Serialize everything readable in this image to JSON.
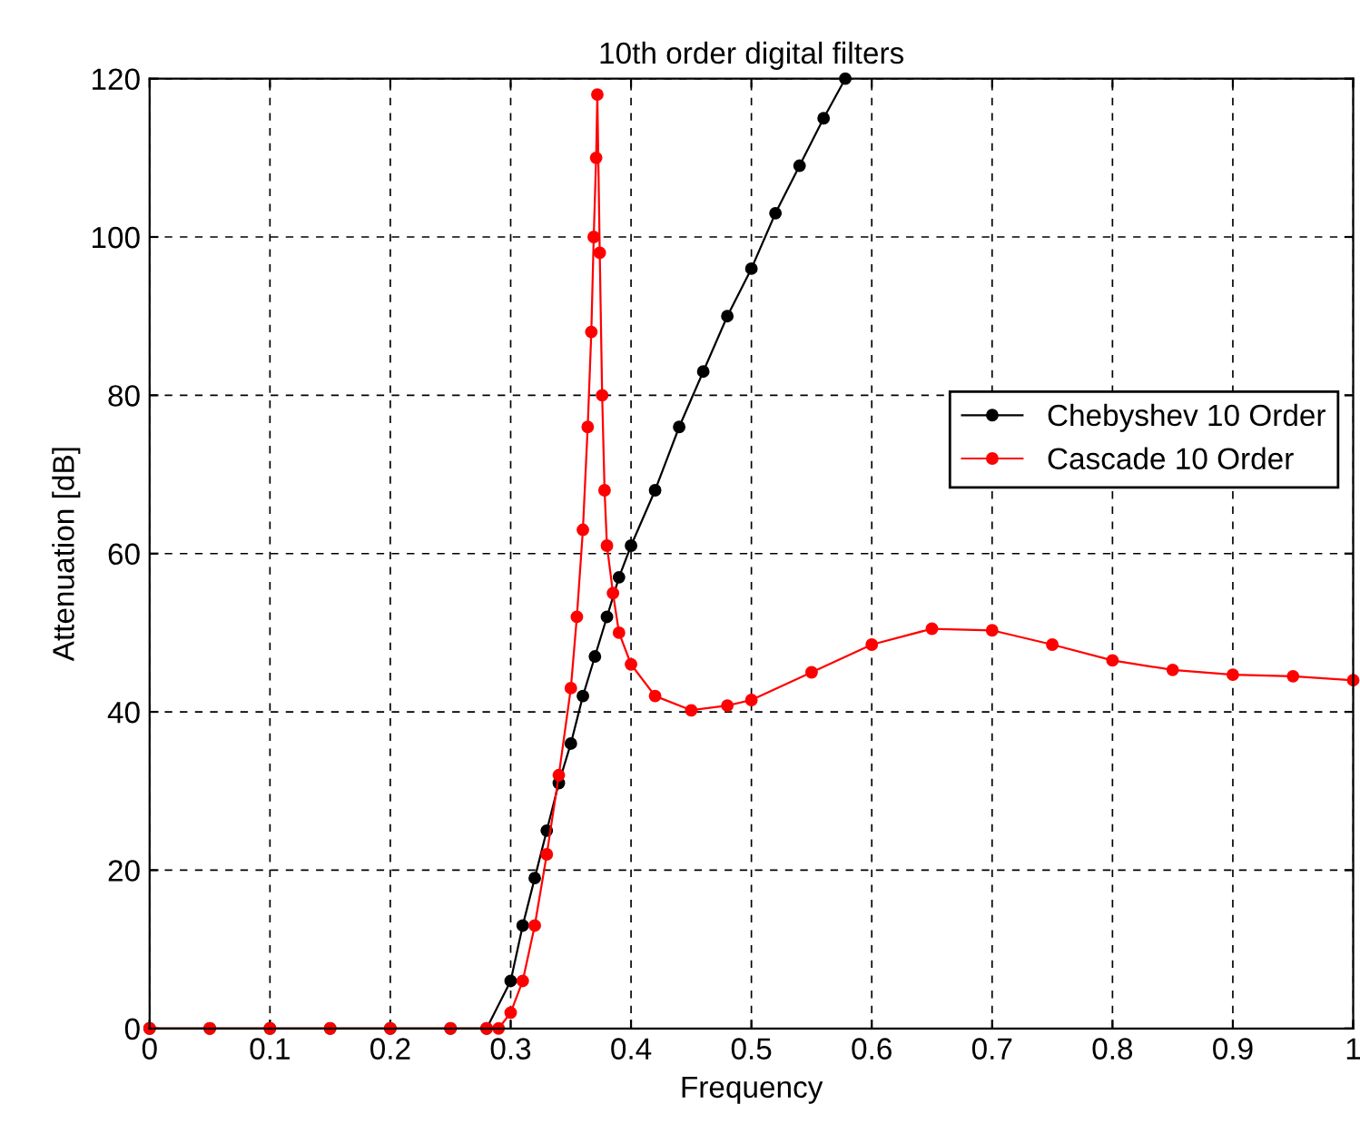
{
  "chart_data": {
    "type": "line",
    "title": "10th order digital filters",
    "xlabel": "Frequency",
    "ylabel": "Attenuation [dB]",
    "xlim": [
      0,
      1
    ],
    "ylim": [
      0,
      120
    ],
    "xticks": [
      0,
      0.1,
      0.2,
      0.3,
      0.4,
      0.5,
      0.6,
      0.7,
      0.8,
      0.9,
      1
    ],
    "yticks": [
      0,
      20,
      40,
      60,
      80,
      100,
      120
    ],
    "grid": true,
    "line_style": "solid",
    "marker": "circle",
    "legend": "right",
    "series": [
      {
        "name": "Chebyshev 10 Order",
        "color": "#000000",
        "x": [
          0,
          0.05,
          0.1,
          0.15,
          0.2,
          0.25,
          0.28,
          0.3,
          0.31,
          0.32,
          0.33,
          0.34,
          0.35,
          0.36,
          0.37,
          0.38,
          0.39,
          0.4,
          0.42,
          0.44,
          0.46,
          0.48,
          0.5,
          0.52,
          0.54,
          0.56,
          0.578
        ],
        "values": [
          0,
          0,
          0,
          0,
          0,
          0,
          0,
          6,
          13,
          19,
          25,
          31,
          36,
          42,
          47,
          52,
          57,
          61,
          68,
          76,
          83,
          90,
          96,
          103,
          109,
          115,
          120
        ]
      },
      {
        "name": "Cascade 10 Order",
        "color": "#ff0000",
        "x": [
          0,
          0.05,
          0.1,
          0.15,
          0.2,
          0.25,
          0.28,
          0.29,
          0.3,
          0.31,
          0.32,
          0.33,
          0.34,
          0.35,
          0.355,
          0.36,
          0.364,
          0.367,
          0.369,
          0.371,
          0.372,
          0.374,
          0.376,
          0.378,
          0.38,
          0.385,
          0.39,
          0.4,
          0.42,
          0.45,
          0.48,
          0.5,
          0.55,
          0.6,
          0.65,
          0.7,
          0.75,
          0.8,
          0.85,
          0.9,
          0.95,
          1
        ],
        "values": [
          0,
          0,
          0,
          0,
          0,
          0,
          0,
          0,
          2,
          6,
          13,
          22,
          32,
          43,
          52,
          63,
          76,
          88,
          100,
          110,
          118,
          98,
          80,
          68,
          61,
          55,
          50,
          46,
          42,
          40.2,
          40.8,
          41.5,
          45,
          48.5,
          50.5,
          50.3,
          48.5,
          46.5,
          45.3,
          44.7,
          44.5,
          44
        ]
      }
    ]
  }
}
